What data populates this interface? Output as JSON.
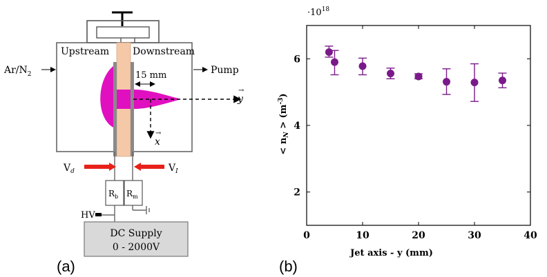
{
  "panels": {
    "a": {
      "label": "(a)",
      "diagram": {
        "upstream": "Upstream",
        "downstream": "Downstream",
        "gas_inlet": "Ar/N",
        "gas_inlet_sub": "2",
        "pump": "Pump",
        "gap": "15 mm",
        "axis_y": "y",
        "axis_x": "x",
        "vd": "V",
        "vd_sub": "d",
        "vi": "V",
        "vi_sub": "I",
        "rb": "R",
        "rb_sub": "b",
        "rm": "R",
        "rm_sub": "m",
        "hv": "HV",
        "supply_line1": "DC Supply",
        "supply_line2": "0 - 2000V",
        "colors": {
          "plasma": "#e010c0",
          "dielectric": "#f5c8a8",
          "probe_arrow": "#e8201a",
          "supply_fill": "#d9d9d9"
        }
      }
    },
    "b": {
      "label": "(b)"
    }
  },
  "chart_data": {
    "type": "scatter",
    "xlabel": "Jet axis - y (mm)",
    "ylabel": "< n",
    "ylabel_sub": "N",
    "ylabel_tail": " > (m",
    "ylabel_sup": "-3",
    "ylabel_close": ")",
    "y_multiplier": "·10",
    "y_multiplier_exp": "18",
    "xlim": [
      0,
      40
    ],
    "ylim": [
      1.0,
      7.0
    ],
    "xticks": [
      "0",
      "10",
      "20",
      "30",
      "40"
    ],
    "yticks": [
      "2",
      "4",
      "6"
    ],
    "xtick_values": [
      0,
      10,
      20,
      30,
      40
    ],
    "ytick_values": [
      2,
      4,
      6
    ],
    "grid": false,
    "color": "#7a1a8a",
    "series": [
      {
        "x": [
          4,
          5,
          10,
          15,
          20,
          25,
          30,
          35
        ],
        "y": [
          6.2,
          5.9,
          5.78,
          5.56,
          5.47,
          5.31,
          5.29,
          5.35
        ],
        "err_low": [
          6.05,
          5.52,
          5.52,
          5.4,
          5.4,
          4.93,
          4.72,
          5.13
        ],
        "err_high": [
          6.38,
          6.25,
          6.02,
          5.72,
          5.55,
          5.7,
          5.85,
          5.57
        ]
      }
    ]
  }
}
